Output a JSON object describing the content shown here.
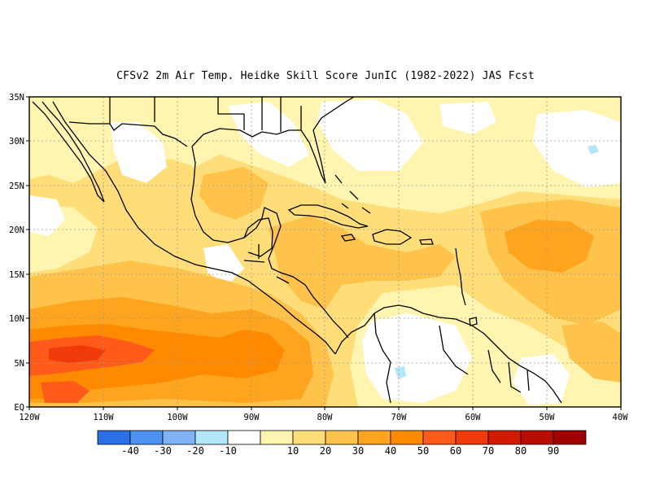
{
  "title": "CFSv2  2m Air Temp. Heidke Skill Score JunIC (1982-2022) JAS Fcst",
  "map": {
    "lon_range": [
      -120,
      -40
    ],
    "lat_range": [
      0,
      35
    ],
    "lat_ticks": [
      {
        "value": 35,
        "label": "35N"
      },
      {
        "value": 30,
        "label": "30N"
      },
      {
        "value": 25,
        "label": "25N"
      },
      {
        "value": 20,
        "label": "20N"
      },
      {
        "value": 15,
        "label": "15N"
      },
      {
        "value": 10,
        "label": "10N"
      },
      {
        "value": 5,
        "label": "5N"
      },
      {
        "value": 0,
        "label": "EQ"
      }
    ],
    "lon_ticks": [
      {
        "value": -120,
        "label": "120W"
      },
      {
        "value": -110,
        "label": "110W"
      },
      {
        "value": -100,
        "label": "100W"
      },
      {
        "value": -90,
        "label": "90W"
      },
      {
        "value": -80,
        "label": "80W"
      },
      {
        "value": -70,
        "label": "70W"
      },
      {
        "value": -60,
        "label": "60W"
      },
      {
        "value": -50,
        "label": "50W"
      },
      {
        "value": -40,
        "label": "40W"
      }
    ],
    "gridlines": true
  },
  "colorbar": {
    "colors": [
      "#2b6fe6",
      "#4d92f0",
      "#7fb3f5",
      "#b3e6fb",
      "#ffffff",
      "#fff5b0",
      "#ffde7a",
      "#ffc24a",
      "#ffa41e",
      "#ff8a00",
      "#ff5a1a",
      "#f03a0a",
      "#d21a00",
      "#b80d00",
      "#9e0000"
    ],
    "labels": [
      "-40",
      "-30",
      "-20",
      "-10",
      "10",
      "20",
      "30",
      "40",
      "50",
      "60",
      "70",
      "80",
      "90"
    ]
  }
}
